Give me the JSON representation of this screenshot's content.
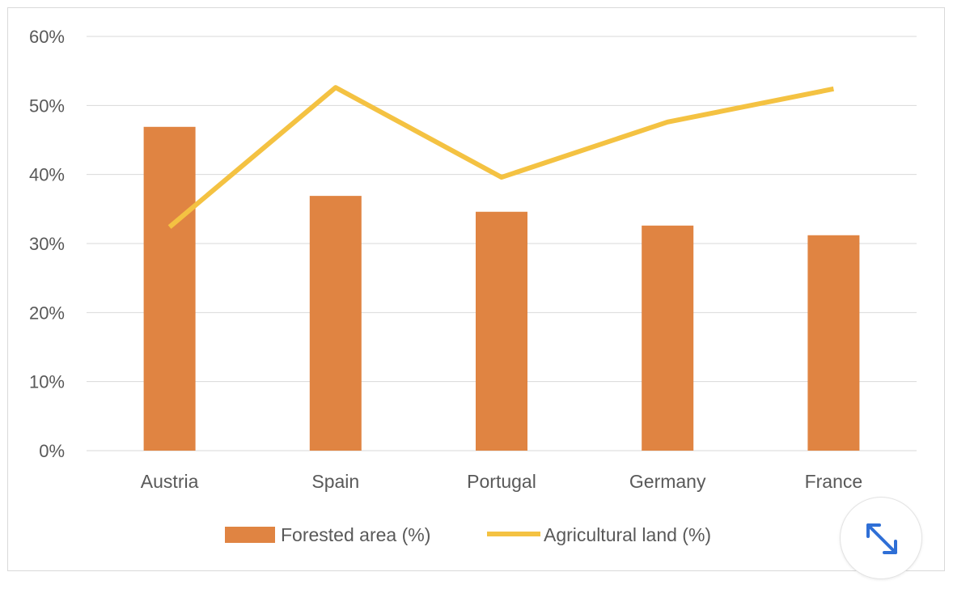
{
  "chart_data": {
    "type": "bar",
    "categories": [
      "Austria",
      "Spain",
      "Portugal",
      "Germany",
      "France"
    ],
    "series": [
      {
        "name": "Forested area (%)",
        "type": "bar",
        "color": "#e08442",
        "values": [
          46.9,
          36.9,
          34.6,
          32.6,
          31.2
        ]
      },
      {
        "name": "Agricultural land (%)",
        "type": "line",
        "color": "#f4c242",
        "values": [
          32.4,
          52.6,
          39.6,
          47.6,
          52.4
        ]
      }
    ],
    "ylim": [
      0,
      60
    ],
    "yticks": [
      0,
      10,
      20,
      30,
      40,
      50,
      60
    ],
    "ytick_labels": [
      "0%",
      "10%",
      "20%",
      "30%",
      "40%",
      "50%",
      "60%"
    ],
    "grid": true,
    "legend_position": "bottom"
  },
  "controls": {
    "expand_icon": "expand-diagonal-arrows-icon",
    "accent_color": "#2f6fd6"
  }
}
